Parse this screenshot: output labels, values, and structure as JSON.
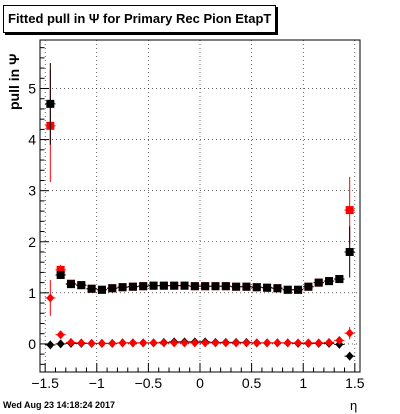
{
  "title": "Fitted pull in  Ψ  for Primary Rec Pion EtapT",
  "footer_date": "Wed Aug 23 14:18:24 2017",
  "chart_data": {
    "type": "scatter",
    "title": "Fitted pull in  Ψ  for Primary Rec Pion EtapT",
    "xlabel": "η",
    "ylabel": "pull in  Ψ",
    "xlim": [
      -1.55,
      1.55
    ],
    "ylim": [
      -0.55,
      5.95
    ],
    "x_ticks": [
      -1.5,
      -1,
      -0.5,
      0,
      0.5,
      1,
      1.5
    ],
    "x_tick_labels": [
      "−1.5",
      "−1",
      "−0.5",
      "0",
      "0.5",
      "1",
      "1.5"
    ],
    "y_ticks": [
      0,
      1,
      2,
      3,
      4,
      5
    ],
    "y_tick_labels": [
      "0",
      "1",
      "2",
      "3",
      "4",
      "5"
    ],
    "grid": true,
    "legend": "none",
    "series": [
      {
        "color": "#ff0000",
        "marker": "square",
        "x": [
          -1.45,
          -1.35,
          -1.25,
          -1.15,
          -1.05,
          -0.95,
          -0.85,
          -0.75,
          -0.65,
          -0.55,
          -0.45,
          -0.35,
          -0.25,
          -0.15,
          -0.05,
          0.05,
          0.15,
          0.25,
          0.35,
          0.45,
          0.55,
          0.65,
          0.75,
          0.85,
          0.95,
          1.05,
          1.15,
          1.25,
          1.35,
          1.45
        ],
        "y": [
          4.27,
          1.45,
          1.18,
          1.15,
          1.08,
          1.06,
          1.09,
          1.11,
          1.12,
          1.13,
          1.14,
          1.14,
          1.14,
          1.14,
          1.13,
          1.13,
          1.13,
          1.13,
          1.12,
          1.12,
          1.11,
          1.1,
          1.09,
          1.06,
          1.06,
          1.12,
          1.2,
          1.23,
          1.27,
          2.62
        ],
        "err": [
          1.1,
          0.1,
          0.03,
          0.02,
          0.02,
          0.02,
          0.01,
          0.01,
          0.01,
          0.01,
          0.01,
          0.01,
          0.01,
          0.01,
          0.01,
          0.01,
          0.01,
          0.01,
          0.01,
          0.01,
          0.01,
          0.01,
          0.01,
          0.02,
          0.02,
          0.02,
          0.03,
          0.03,
          0.06,
          0.65
        ]
      },
      {
        "color": "#000000",
        "marker": "square",
        "x": [
          -1.45,
          -1.35,
          -1.25,
          -1.15,
          -1.05,
          -0.95,
          -0.85,
          -0.75,
          -0.65,
          -0.55,
          -0.45,
          -0.35,
          -0.25,
          -0.15,
          -0.05,
          0.05,
          0.15,
          0.25,
          0.35,
          0.45,
          0.55,
          0.65,
          0.75,
          0.85,
          0.95,
          1.05,
          1.15,
          1.25,
          1.35,
          1.45
        ],
        "y": [
          4.7,
          1.35,
          1.17,
          1.15,
          1.08,
          1.06,
          1.09,
          1.11,
          1.12,
          1.13,
          1.14,
          1.14,
          1.14,
          1.14,
          1.13,
          1.13,
          1.13,
          1.13,
          1.12,
          1.12,
          1.11,
          1.1,
          1.09,
          1.06,
          1.06,
          1.12,
          1.2,
          1.23,
          1.27,
          1.8
        ],
        "err": [
          0.8,
          0.08,
          0.03,
          0.02,
          0.02,
          0.02,
          0.01,
          0.01,
          0.01,
          0.01,
          0.01,
          0.01,
          0.01,
          0.01,
          0.01,
          0.01,
          0.01,
          0.01,
          0.01,
          0.01,
          0.01,
          0.01,
          0.01,
          0.02,
          0.02,
          0.02,
          0.03,
          0.03,
          0.06,
          0.5
        ]
      },
      {
        "color": "#000000",
        "marker": "diamond",
        "x": [
          -1.45,
          -1.35,
          -1.25,
          -1.15,
          -1.05,
          -0.95,
          -0.85,
          -0.75,
          -0.65,
          -0.55,
          -0.45,
          -0.35,
          -0.25,
          -0.15,
          -0.05,
          0.05,
          0.15,
          0.25,
          0.35,
          0.45,
          0.55,
          0.65,
          0.75,
          0.85,
          0.95,
          1.05,
          1.15,
          1.25,
          1.35,
          1.45
        ],
        "y": [
          -0.02,
          0.0,
          0.01,
          0.01,
          0.01,
          0.01,
          0.01,
          0.02,
          0.02,
          0.02,
          0.02,
          0.03,
          0.04,
          0.04,
          0.04,
          0.04,
          0.03,
          0.03,
          0.03,
          0.03,
          0.02,
          0.02,
          0.02,
          0.02,
          0.01,
          0.01,
          0.01,
          0.01,
          -0.01,
          -0.24
        ],
        "err": [
          0.05,
          0.02,
          0.01,
          0.01,
          0.01,
          0.01,
          0.01,
          0.01,
          0.01,
          0.01,
          0.01,
          0.01,
          0.01,
          0.01,
          0.01,
          0.01,
          0.01,
          0.01,
          0.01,
          0.01,
          0.01,
          0.01,
          0.01,
          0.01,
          0.01,
          0.01,
          0.01,
          0.01,
          0.02,
          0.08
        ]
      },
      {
        "color": "#ff0000",
        "marker": "diamond",
        "x": [
          -1.45,
          -1.35,
          -1.25,
          -1.15,
          -1.05,
          -0.95,
          -0.85,
          -0.75,
          -0.65,
          -0.55,
          -0.45,
          -0.35,
          -0.25,
          -0.15,
          -0.05,
          0.05,
          0.15,
          0.25,
          0.35,
          0.45,
          0.55,
          0.65,
          0.75,
          0.85,
          0.95,
          1.05,
          1.15,
          1.25,
          1.35,
          1.45
        ],
        "y": [
          0.9,
          0.18,
          0.03,
          0.02,
          0.01,
          0.01,
          0.01,
          0.02,
          0.02,
          0.02,
          0.02,
          0.02,
          0.02,
          0.02,
          0.02,
          0.02,
          0.02,
          0.02,
          0.02,
          0.02,
          0.02,
          0.02,
          0.02,
          0.02,
          0.02,
          0.02,
          0.02,
          0.03,
          0.07,
          0.21
        ],
        "err": [
          0.35,
          0.05,
          0.02,
          0.01,
          0.01,
          0.01,
          0.01,
          0.01,
          0.01,
          0.01,
          0.01,
          0.01,
          0.01,
          0.01,
          0.01,
          0.01,
          0.01,
          0.01,
          0.01,
          0.01,
          0.01,
          0.01,
          0.01,
          0.01,
          0.01,
          0.01,
          0.01,
          0.01,
          0.02,
          0.12
        ]
      }
    ]
  }
}
